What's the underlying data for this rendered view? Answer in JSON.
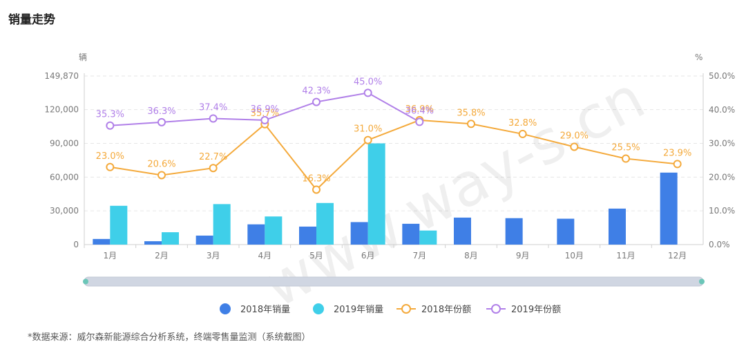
{
  "page": {
    "title": "销量走势",
    "source": "*数据来源：威尔森新能源综合分析系统，终端零售量监测（系统截图）",
    "watermark": "www.way-s.cn"
  },
  "chart_data": {
    "type": "bar+line",
    "categories": [
      "1月",
      "2月",
      "3月",
      "4月",
      "5月",
      "6月",
      "7月",
      "8月",
      "9月",
      "10月",
      "11月",
      "12月"
    ],
    "left_axis": {
      "unit": "辆",
      "min": 0,
      "max": 149870,
      "ticks": [
        0,
        30000,
        60000,
        90000,
        120000,
        149870
      ],
      "tick_labels": [
        "0",
        "30,000",
        "60,000",
        "90,000",
        "120,000",
        "149,870"
      ]
    },
    "right_axis": {
      "unit": "%",
      "min": 0,
      "max": 50,
      "ticks": [
        0,
        10,
        20,
        30,
        40,
        50
      ],
      "tick_labels": [
        "0.0%",
        "10.0%",
        "20.0%",
        "30.0%",
        "40.0%",
        "50.0%"
      ]
    },
    "bar_series": [
      {
        "name": "2018年销量",
        "color": "#3f7fe6",
        "values": [
          5000,
          3000,
          8000,
          18000,
          16000,
          20000,
          18500,
          24000,
          23500,
          23000,
          32000,
          64000
        ]
      },
      {
        "name": "2019年销量",
        "color": "#3fcfe9",
        "values": [
          34500,
          11000,
          36000,
          25000,
          37000,
          90000,
          12500,
          null,
          null,
          null,
          null,
          null
        ]
      }
    ],
    "line_series": [
      {
        "name": "2018年份额",
        "color": "#f4a93a",
        "values": [
          23.0,
          20.6,
          22.7,
          35.7,
          16.3,
          31.0,
          36.9,
          35.8,
          32.8,
          29.0,
          25.5,
          23.9
        ],
        "labels": [
          "23.0%",
          "20.6%",
          "22.7%",
          "35.7%",
          "16.3%",
          "31.0%",
          "36.9%",
          "35.8%",
          "32.8%",
          "29.0%",
          "25.5%",
          "23.9%"
        ]
      },
      {
        "name": "2019年份额",
        "color": "#b07fe8",
        "values": [
          35.3,
          36.3,
          37.4,
          36.9,
          42.3,
          45.0,
          36.4,
          null,
          null,
          null,
          null,
          null
        ],
        "labels": [
          "35.3%",
          "36.3%",
          "37.4%",
          "36.9%",
          "42.3%",
          "45.0%",
          "36.4%",
          null,
          null,
          null,
          null,
          null
        ]
      }
    ],
    "legend": {
      "position": "bottom",
      "items": [
        "2018年销量",
        "2019年销量",
        "2018年份额",
        "2019年份额"
      ]
    },
    "grid": true
  }
}
